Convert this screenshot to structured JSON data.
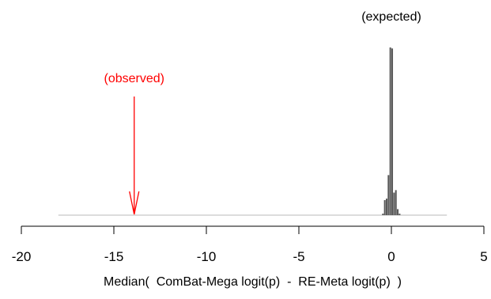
{
  "chart_data": {
    "type": "bar",
    "title": "",
    "xlabel": "Median(  ComBat-Mega logit(p)  -  RE-Meta logit(p)  )",
    "ylabel": "",
    "xlim": [
      -20,
      5
    ],
    "x_ticks": [
      -20,
      -15,
      -10,
      -5,
      0,
      5
    ],
    "x_tick_labels": [
      "-20",
      "-15",
      "-10",
      "-5",
      "0",
      "5"
    ],
    "grid": false,
    "legend": "none",
    "baseline_range": [
      -18,
      3
    ],
    "bin_width": 0.1,
    "bars": [
      {
        "x_start": -0.5,
        "x_end": -0.4,
        "count": 3
      },
      {
        "x_start": -0.4,
        "x_end": -0.3,
        "count": 30
      },
      {
        "x_start": -0.3,
        "x_end": -0.2,
        "count": 33
      },
      {
        "x_start": -0.2,
        "x_end": -0.1,
        "count": 80
      },
      {
        "x_start": -0.1,
        "x_end": 0.0,
        "count": 335
      },
      {
        "x_start": 0.0,
        "x_end": 0.1,
        "count": 333
      },
      {
        "x_start": 0.1,
        "x_end": 0.2,
        "count": 45
      },
      {
        "x_start": 0.2,
        "x_end": 0.3,
        "count": 50
      },
      {
        "x_start": 0.3,
        "x_end": 0.4,
        "count": 12
      },
      {
        "x_start": 0.4,
        "x_end": 0.5,
        "count": 3
      }
    ],
    "bar_color": "#595959",
    "baseline_color": "#c8c8c8",
    "annotations": [
      {
        "text": "(expected)",
        "x": 0.0,
        "color": "#000000"
      },
      {
        "text": "(observed)",
        "x": -13.9,
        "color": "#ff0000",
        "arrow": true
      }
    ]
  }
}
